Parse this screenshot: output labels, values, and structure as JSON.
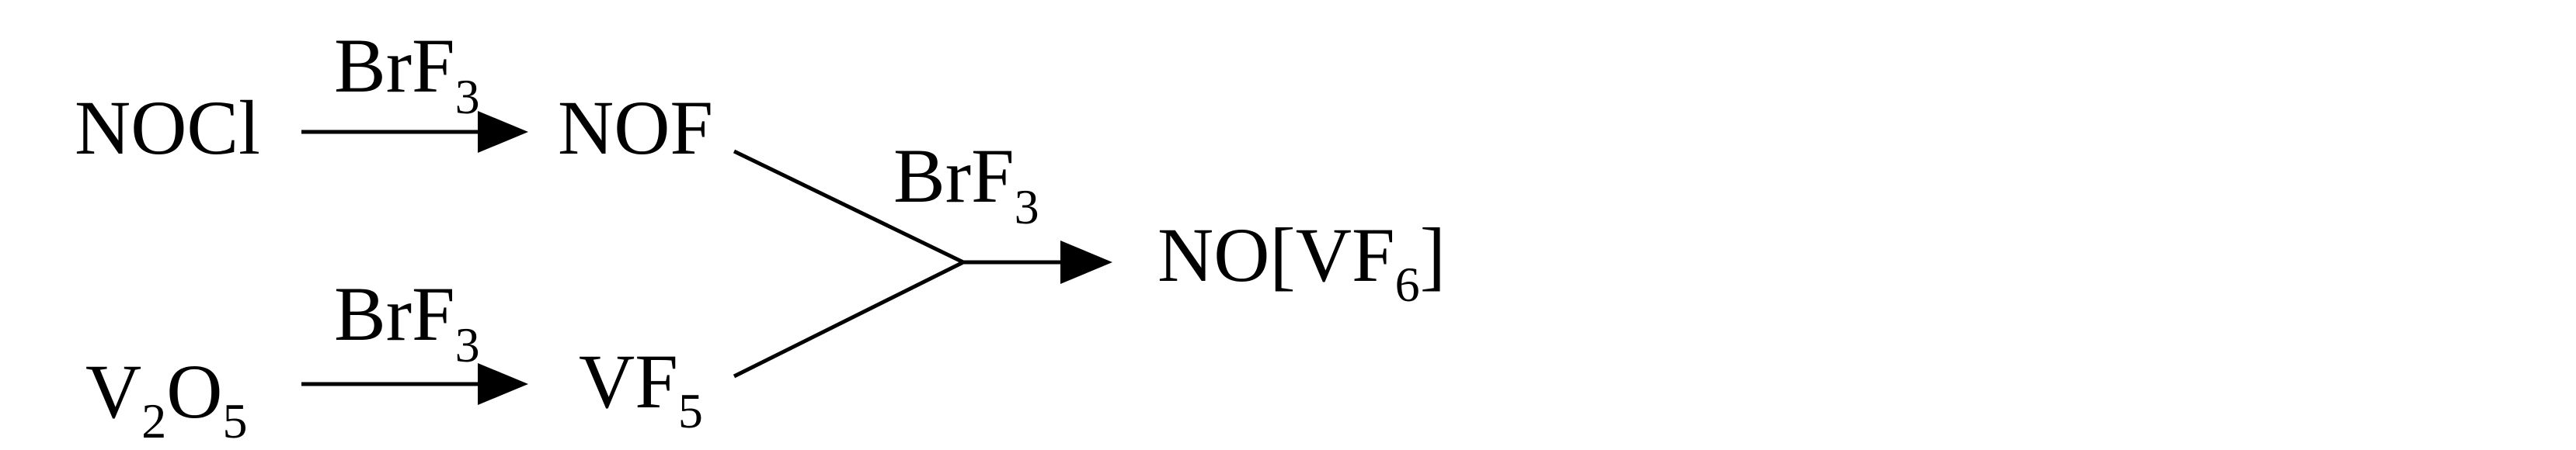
{
  "scheme": {
    "reagent_top": {
      "main": "BrF",
      "sub": "3"
    },
    "reagent_bottom": {
      "main": "BrF",
      "sub": "3"
    },
    "reagent_merge": {
      "main": "BrF",
      "sub": "3"
    },
    "start_top": {
      "text": "NOCl"
    },
    "intermediate_top": {
      "text": "NOF"
    },
    "start_bottom": {
      "p1": "V",
      "s1": "2",
      "p2": "O",
      "s2": "5"
    },
    "intermediate_bottom": {
      "p1": "VF",
      "s1": "5"
    },
    "product": {
      "p1": "NO[VF",
      "s1": "6",
      "p2": "]"
    },
    "colors": {
      "ink": "#000000",
      "background": "#ffffff"
    }
  }
}
